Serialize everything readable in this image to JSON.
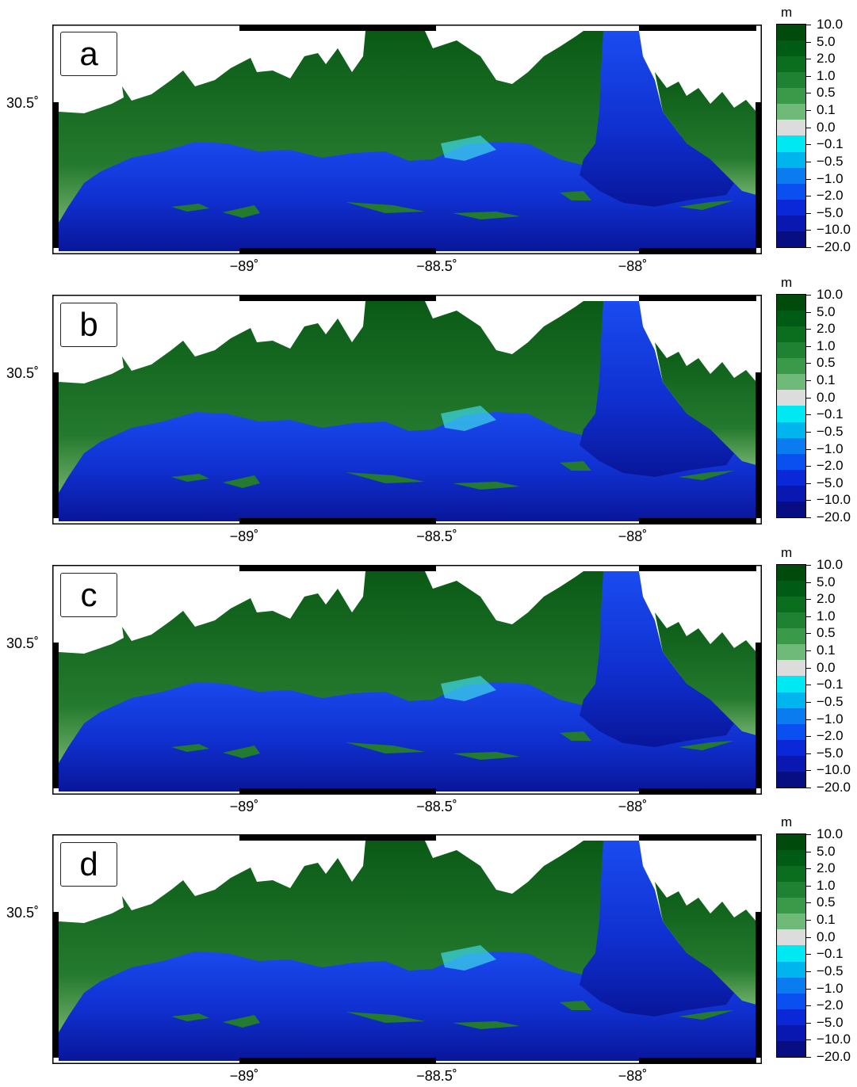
{
  "panels": [
    {
      "tag": "a"
    },
    {
      "tag": "b"
    },
    {
      "tag": "c"
    },
    {
      "tag": "d"
    }
  ],
  "axes": {
    "y_tick": "30.5˚",
    "x_ticks": [
      "−89˚",
      "−88.5˚",
      "−88˚"
    ]
  },
  "colorbar": {
    "unit": "m",
    "labels": [
      "10.0",
      "5.0",
      "2.0",
      "1.0",
      "0.5",
      "0.1",
      "0.0",
      "−0.1",
      "−0.5",
      "−1.0",
      "−2.0",
      "−5.0",
      "−10.0",
      "−20.0"
    ],
    "colors": [
      "#004a0c",
      "#005c14",
      "#0a6e1e",
      "#1e8232",
      "#3a9a4a",
      "#6fba78",
      "#dcdcdc",
      "#00e8f2",
      "#00b4ee",
      "#0a7cf0",
      "#0a50f0",
      "#0a28d8",
      "#0818b0",
      "#060e82"
    ]
  },
  "colors": {
    "land_high": "#0a5a16",
    "land_mid": "#247a2e",
    "land_low": "#6fae6a",
    "water_shallow": "#1a4cf0",
    "water_deep": "#08169a",
    "frame": "#000000"
  }
}
